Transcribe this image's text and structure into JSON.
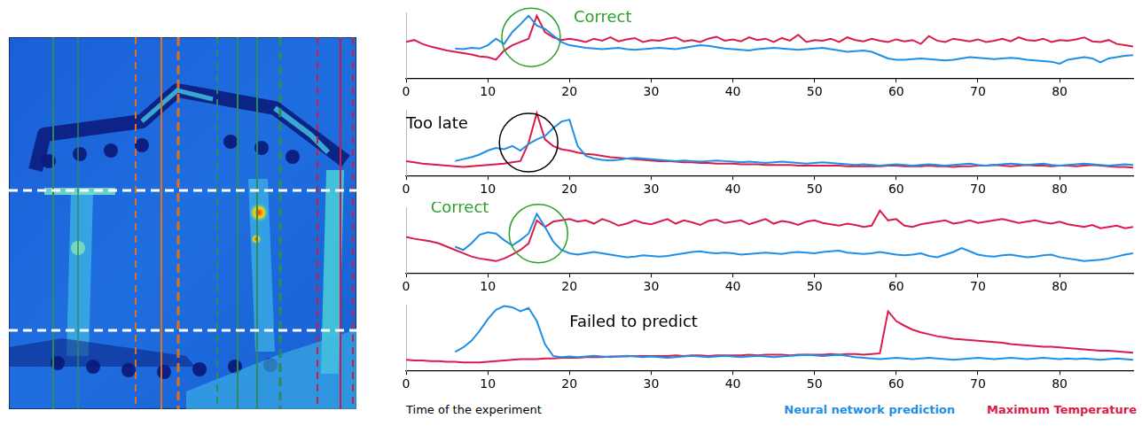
{
  "chart_data": [
    {
      "type": "line",
      "x": [
        0,
        1,
        2,
        3,
        4,
        5,
        6,
        7,
        8,
        9,
        10,
        11,
        12,
        13,
        14,
        15,
        16,
        17,
        18,
        19,
        20,
        21,
        22,
        23,
        24,
        25,
        26,
        27,
        28,
        29,
        30,
        31,
        32,
        33,
        34,
        35,
        36,
        37,
        38,
        39,
        40,
        41,
        42,
        43,
        44,
        45,
        46,
        47,
        48,
        49,
        50,
        51,
        52,
        53,
        54,
        55,
        56,
        57,
        58,
        59,
        60,
        61,
        62,
        63,
        64,
        65,
        66,
        67,
        68,
        69,
        70,
        71,
        72,
        73,
        74,
        75,
        76,
        77,
        78,
        79,
        80,
        81,
        82,
        83,
        84,
        85,
        86,
        87,
        88,
        89
      ],
      "xlim": [
        0,
        89
      ],
      "xticks": [
        0,
        10,
        20,
        30,
        40,
        50,
        60,
        70,
        80
      ],
      "ylim": [
        0,
        1
      ],
      "yticks": [],
      "tick_labels": "x",
      "grid": false,
      "annotation": "Correct",
      "series": [
        {
          "name": "Neural network prediction",
          "color": "#1f8fe6",
          "values": [
            null,
            null,
            null,
            null,
            null,
            null,
            0.45,
            0.44,
            0.46,
            0.45,
            0.5,
            0.6,
            0.52,
            0.7,
            0.82,
            0.95,
            0.8,
            0.75,
            0.65,
            0.55,
            0.5,
            0.48,
            0.46,
            0.45,
            0.44,
            0.45,
            0.46,
            0.44,
            0.43,
            0.44,
            0.45,
            0.46,
            0.45,
            0.44,
            0.46,
            0.48,
            0.5,
            0.49,
            0.47,
            0.45,
            0.44,
            0.43,
            0.42,
            0.44,
            0.45,
            0.46,
            0.45,
            0.44,
            0.43,
            0.44,
            0.45,
            0.46,
            0.44,
            0.42,
            0.4,
            0.41,
            0.42,
            0.4,
            0.35,
            0.3,
            0.28,
            0.28,
            0.29,
            0.3,
            0.29,
            0.28,
            0.27,
            0.28,
            0.3,
            0.32,
            0.31,
            0.3,
            0.29,
            0.3,
            0.31,
            0.3,
            0.28,
            0.27,
            0.26,
            0.25,
            0.22,
            0.28,
            0.3,
            0.32,
            0.3,
            0.24,
            0.3,
            0.32,
            0.34,
            0.35
          ]
        },
        {
          "name": "Maximum Temperature",
          "color": "#d91c4b",
          "values": [
            0.55,
            0.58,
            0.52,
            0.48,
            0.45,
            0.42,
            0.4,
            0.38,
            0.36,
            0.33,
            0.32,
            0.28,
            0.42,
            0.5,
            0.55,
            0.6,
            0.95,
            0.7,
            0.62,
            0.58,
            0.6,
            0.58,
            0.55,
            0.6,
            0.57,
            0.62,
            0.56,
            0.59,
            0.61,
            0.55,
            0.58,
            0.57,
            0.6,
            0.62,
            0.56,
            0.58,
            0.55,
            0.6,
            0.63,
            0.57,
            0.59,
            0.56,
            0.62,
            0.58,
            0.6,
            0.55,
            0.61,
            0.57,
            0.66,
            0.55,
            0.58,
            0.57,
            0.6,
            0.55,
            0.62,
            0.58,
            0.56,
            0.6,
            0.57,
            0.55,
            0.59,
            0.56,
            0.58,
            0.52,
            0.64,
            0.57,
            0.55,
            0.6,
            0.58,
            0.56,
            0.59,
            0.55,
            0.57,
            0.6,
            0.56,
            0.62,
            0.58,
            0.57,
            0.6,
            0.55,
            0.58,
            0.57,
            0.59,
            0.62,
            0.56,
            0.55,
            0.58,
            0.52,
            0.5,
            0.48
          ]
        }
      ]
    },
    {
      "type": "line",
      "x": [
        0,
        1,
        2,
        3,
        4,
        5,
        6,
        7,
        8,
        9,
        10,
        11,
        12,
        13,
        14,
        15,
        16,
        17,
        18,
        19,
        20,
        21,
        22,
        23,
        24,
        25,
        26,
        27,
        28,
        29,
        30,
        31,
        32,
        33,
        34,
        35,
        36,
        37,
        38,
        39,
        40,
        41,
        42,
        43,
        44,
        45,
        46,
        47,
        48,
        49,
        50,
        51,
        52,
        53,
        54,
        55,
        56,
        57,
        58,
        59,
        60,
        61,
        62,
        63,
        64,
        65,
        66,
        67,
        68,
        69,
        70,
        71,
        72,
        73,
        74,
        75,
        76,
        77,
        78,
        79,
        80,
        81,
        82,
        83,
        84,
        85,
        86,
        87,
        88,
        89
      ],
      "xlim": [
        0,
        89
      ],
      "xticks": [
        0,
        10,
        20,
        30,
        40,
        50,
        60,
        70,
        80
      ],
      "ylim": [
        0,
        1
      ],
      "yticks": [],
      "tick_labels": "x",
      "grid": false,
      "annotation": "Too late",
      "series": [
        {
          "name": "Neural network prediction",
          "color": "#1f8fe6",
          "values": [
            null,
            null,
            null,
            null,
            null,
            null,
            0.22,
            0.25,
            0.28,
            0.32,
            0.38,
            0.42,
            0.4,
            0.45,
            0.38,
            0.48,
            0.55,
            0.6,
            0.72,
            0.82,
            0.85,
            0.45,
            0.3,
            0.26,
            0.24,
            0.23,
            0.24,
            0.26,
            0.27,
            0.26,
            0.25,
            0.24,
            0.23,
            0.22,
            0.23,
            0.22,
            0.21,
            0.22,
            0.23,
            0.22,
            0.21,
            0.2,
            0.21,
            0.2,
            0.19,
            0.2,
            0.21,
            0.2,
            0.19,
            0.18,
            0.19,
            0.2,
            0.19,
            0.18,
            0.17,
            0.16,
            0.17,
            0.16,
            0.15,
            0.16,
            0.17,
            0.16,
            0.15,
            0.16,
            0.17,
            0.16,
            0.15,
            0.16,
            0.17,
            0.18,
            0.16,
            0.15,
            0.16,
            0.17,
            0.18,
            0.17,
            0.16,
            0.17,
            0.18,
            0.16,
            0.15,
            0.16,
            0.17,
            0.18,
            0.17,
            0.16,
            0.15,
            0.16,
            0.17,
            0.16
          ]
        },
        {
          "name": "Maximum Temperature",
          "color": "#d91c4b",
          "values": [
            0.22,
            0.2,
            0.18,
            0.17,
            0.16,
            0.15,
            0.14,
            0.13,
            0.14,
            0.15,
            0.16,
            0.17,
            0.18,
            0.2,
            0.22,
            0.5,
            0.95,
            0.55,
            0.45,
            0.4,
            0.38,
            0.35,
            0.33,
            0.32,
            0.3,
            0.28,
            0.27,
            0.26,
            0.25,
            0.24,
            0.23,
            0.22,
            0.22,
            0.21,
            0.2,
            0.2,
            0.19,
            0.19,
            0.18,
            0.18,
            0.18,
            0.17,
            0.17,
            0.17,
            0.16,
            0.16,
            0.16,
            0.16,
            0.15,
            0.15,
            0.15,
            0.15,
            0.15,
            0.15,
            0.14,
            0.14,
            0.14,
            0.14,
            0.14,
            0.15,
            0.15,
            0.14,
            0.14,
            0.14,
            0.15,
            0.14,
            0.14,
            0.13,
            0.14,
            0.14,
            0.15,
            0.15,
            0.16,
            0.15,
            0.14,
            0.15,
            0.16,
            0.15,
            0.15,
            0.14,
            0.15,
            0.15,
            0.14,
            0.15,
            0.16,
            0.15,
            0.14,
            0.13,
            0.13,
            0.12
          ]
        }
      ]
    },
    {
      "type": "line",
      "x": [
        0,
        1,
        2,
        3,
        4,
        5,
        6,
        7,
        8,
        9,
        10,
        11,
        12,
        13,
        14,
        15,
        16,
        17,
        18,
        19,
        20,
        21,
        22,
        23,
        24,
        25,
        26,
        27,
        28,
        29,
        30,
        31,
        32,
        33,
        34,
        35,
        36,
        37,
        38,
        39,
        40,
        41,
        42,
        43,
        44,
        45,
        46,
        47,
        48,
        49,
        50,
        51,
        52,
        53,
        54,
        55,
        56,
        57,
        58,
        59,
        60,
        61,
        62,
        63,
        64,
        65,
        66,
        67,
        68,
        69,
        70,
        71,
        72,
        73,
        74,
        75,
        76,
        77,
        78,
        79,
        80,
        81,
        82,
        83,
        84,
        85,
        86,
        87,
        88,
        89
      ],
      "xlim": [
        0,
        89
      ],
      "xticks": [
        0,
        10,
        20,
        30,
        40,
        50,
        60,
        70,
        80
      ],
      "ylim": [
        0,
        1
      ],
      "yticks": [],
      "tick_labels": "x",
      "grid": false,
      "annotation": "Correct",
      "series": [
        {
          "name": "Neural network prediction",
          "color": "#1f8fe6",
          "values": [
            null,
            null,
            null,
            null,
            null,
            null,
            0.4,
            0.35,
            0.45,
            0.58,
            0.62,
            0.6,
            0.5,
            0.42,
            0.5,
            0.6,
            0.9,
            0.7,
            0.48,
            0.35,
            0.3,
            0.28,
            0.3,
            0.32,
            0.3,
            0.28,
            0.26,
            0.24,
            0.25,
            0.27,
            0.26,
            0.25,
            0.26,
            0.28,
            0.3,
            0.32,
            0.33,
            0.31,
            0.3,
            0.31,
            0.3,
            0.28,
            0.29,
            0.3,
            0.31,
            0.3,
            0.29,
            0.31,
            0.32,
            0.31,
            0.3,
            0.32,
            0.33,
            0.34,
            0.31,
            0.3,
            0.29,
            0.3,
            0.32,
            0.3,
            0.28,
            0.27,
            0.28,
            0.3,
            0.26,
            0.24,
            0.28,
            0.32,
            0.38,
            0.33,
            0.28,
            0.26,
            0.25,
            0.27,
            0.28,
            0.26,
            0.24,
            0.25,
            0.27,
            0.28,
            0.24,
            0.22,
            0.2,
            0.18,
            0.19,
            0.2,
            0.22,
            0.25,
            0.28,
            0.3
          ]
        },
        {
          "name": "Maximum Temperature",
          "color": "#d91c4b",
          "values": [
            0.55,
            0.52,
            0.5,
            0.48,
            0.45,
            0.4,
            0.35,
            0.3,
            0.25,
            0.22,
            0.2,
            0.18,
            0.22,
            0.28,
            0.35,
            0.45,
            0.8,
            0.7,
            0.78,
            0.8,
            0.82,
            0.78,
            0.8,
            0.75,
            0.82,
            0.78,
            0.72,
            0.75,
            0.8,
            0.76,
            0.74,
            0.78,
            0.82,
            0.75,
            0.8,
            0.77,
            0.73,
            0.79,
            0.81,
            0.76,
            0.78,
            0.8,
            0.74,
            0.78,
            0.82,
            0.75,
            0.79,
            0.77,
            0.73,
            0.78,
            0.8,
            0.76,
            0.74,
            0.72,
            0.75,
            0.73,
            0.7,
            0.72,
            0.95,
            0.8,
            0.82,
            0.72,
            0.7,
            0.74,
            0.76,
            0.78,
            0.8,
            0.75,
            0.77,
            0.8,
            0.76,
            0.78,
            0.8,
            0.82,
            0.79,
            0.76,
            0.78,
            0.8,
            0.77,
            0.75,
            0.78,
            0.74,
            0.72,
            0.7,
            0.73,
            0.68,
            0.7,
            0.72,
            0.68,
            0.7
          ]
        }
      ]
    },
    {
      "type": "line",
      "x": [
        0,
        1,
        2,
        3,
        4,
        5,
        6,
        7,
        8,
        9,
        10,
        11,
        12,
        13,
        14,
        15,
        16,
        17,
        18,
        19,
        20,
        21,
        22,
        23,
        24,
        25,
        26,
        27,
        28,
        29,
        30,
        31,
        32,
        33,
        34,
        35,
        36,
        37,
        38,
        39,
        40,
        41,
        42,
        43,
        44,
        45,
        46,
        47,
        48,
        49,
        50,
        51,
        52,
        53,
        54,
        55,
        56,
        57,
        58,
        59,
        60,
        61,
        62,
        63,
        64,
        65,
        66,
        67,
        68,
        69,
        70,
        71,
        72,
        73,
        74,
        75,
        76,
        77,
        78,
        79,
        80,
        81,
        82,
        83,
        84,
        85,
        86,
        87,
        88,
        89
      ],
      "xlim": [
        0,
        89
      ],
      "xticks": [
        0,
        10,
        20,
        30,
        40,
        50,
        60,
        70,
        80
      ],
      "ylim": [
        0,
        1
      ],
      "yticks": [],
      "tick_labels": "x",
      "grid": false,
      "annotation": "Failed to predict",
      "x_label": "Time of the experiment",
      "legend": "bottom",
      "series": [
        {
          "name": "Neural network prediction",
          "color": "#1f8fe6",
          "values": [
            null,
            null,
            null,
            null,
            null,
            null,
            0.28,
            0.35,
            0.45,
            0.6,
            0.78,
            0.92,
            0.98,
            0.96,
            0.9,
            0.95,
            0.75,
            0.4,
            0.22,
            0.2,
            0.21,
            0.2,
            0.21,
            0.22,
            0.21,
            0.2,
            0.21,
            0.22,
            0.21,
            0.2,
            0.21,
            0.2,
            0.19,
            0.2,
            0.21,
            0.22,
            0.21,
            0.2,
            0.21,
            0.22,
            0.21,
            0.2,
            0.21,
            0.22,
            0.21,
            0.2,
            0.21,
            0.22,
            0.23,
            0.24,
            0.23,
            0.22,
            0.23,
            0.24,
            0.22,
            0.2,
            0.19,
            0.18,
            0.17,
            0.18,
            0.19,
            0.18,
            0.17,
            0.18,
            0.19,
            0.18,
            0.17,
            0.16,
            0.17,
            0.18,
            0.19,
            0.18,
            0.17,
            0.18,
            0.19,
            0.18,
            0.17,
            0.18,
            0.19,
            0.18,
            0.17,
            0.18,
            0.17,
            0.18,
            0.17,
            0.16,
            0.17,
            0.18,
            0.17,
            0.16
          ]
        },
        {
          "name": "Maximum Temperature",
          "color": "#d91c4b",
          "values": [
            0.16,
            0.15,
            0.15,
            0.14,
            0.14,
            0.13,
            0.13,
            0.12,
            0.12,
            0.12,
            0.13,
            0.14,
            0.15,
            0.16,
            0.17,
            0.17,
            0.17,
            0.18,
            0.18,
            0.19,
            0.19,
            0.19,
            0.2,
            0.2,
            0.2,
            0.21,
            0.21,
            0.21,
            0.22,
            0.22,
            0.22,
            0.22,
            0.22,
            0.23,
            0.22,
            0.23,
            0.23,
            0.22,
            0.23,
            0.23,
            0.23,
            0.23,
            0.24,
            0.23,
            0.24,
            0.24,
            0.24,
            0.23,
            0.24,
            0.24,
            0.24,
            0.24,
            0.25,
            0.24,
            0.25,
            0.25,
            0.24,
            0.25,
            0.26,
            0.9,
            0.75,
            0.68,
            0.62,
            0.58,
            0.55,
            0.52,
            0.5,
            0.48,
            0.47,
            0.46,
            0.45,
            0.44,
            0.43,
            0.42,
            0.4,
            0.39,
            0.38,
            0.37,
            0.36,
            0.36,
            0.35,
            0.34,
            0.33,
            0.32,
            0.31,
            0.3,
            0.3,
            0.29,
            0.28,
            0.27
          ]
        }
      ]
    }
  ]
}
